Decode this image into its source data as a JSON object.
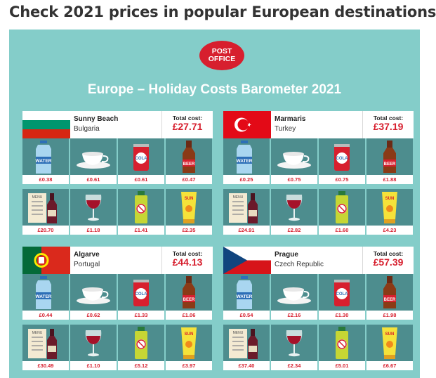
{
  "headline": "Check 2021 prices in popular European destinations",
  "logo": {
    "line1": "POST",
    "line2": "OFFICE"
  },
  "barometer_title": "Europe – Holiday Costs Barometer 2021",
  "total_label": "Total cost:",
  "item_icons": [
    "water-bottle-icon",
    "coffee-cup-icon",
    "cola-can-icon",
    "beer-bottle-icon",
    "menu-wine-bottle-icon",
    "wine-glass-icon",
    "insect-repellent-icon",
    "sun-cream-icon"
  ],
  "icon_text": {
    "water": "WATER",
    "cola": "COLA",
    "beer": "BEER",
    "sun": "SUN",
    "menu": "MENU"
  },
  "colors": {
    "panel": "#84cdc9",
    "tile": "#4d8d8e",
    "price": "#d71f2e",
    "accent_red": "#d71f2e"
  },
  "destinations": [
    {
      "name": "Sunny Beach",
      "country": "Bulgaria",
      "flag": "bulgaria",
      "total": "£27.71",
      "prices": [
        "£0.38",
        "£0.61",
        "£0.61",
        "£0.47",
        "£20.70",
        "£1.18",
        "£1.41",
        "£2.35"
      ]
    },
    {
      "name": "Marmaris",
      "country": "Turkey",
      "flag": "turkey",
      "total": "£37.19",
      "prices": [
        "£0.25",
        "£0.75",
        "£0.75",
        "£1.88",
        "£24.91",
        "£2.82",
        "£1.60",
        "£4.23"
      ]
    },
    {
      "name": "Algarve",
      "country": "Portugal",
      "flag": "portugal",
      "total": "£44.13",
      "prices": [
        "£0.44",
        "£0.62",
        "£1.33",
        "£1.06",
        "£30.49",
        "£1.10",
        "£5.12",
        "£3.97"
      ]
    },
    {
      "name": "Prague",
      "country": "Czech Republic",
      "flag": "czech",
      "total": "£57.39",
      "prices": [
        "£0.54",
        "£2.16",
        "£1.30",
        "£1.98",
        "£37.40",
        "£2.34",
        "£5.01",
        "£6.67"
      ]
    }
  ]
}
